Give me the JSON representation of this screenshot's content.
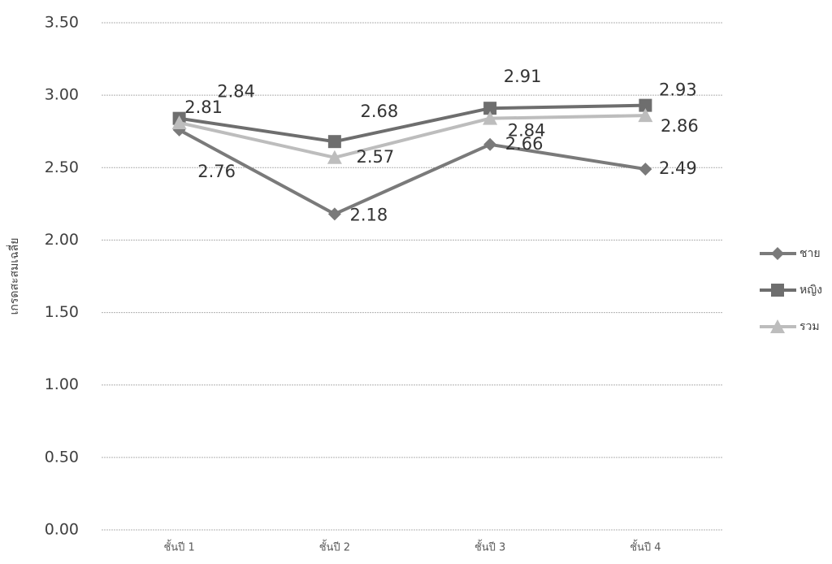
{
  "chart_data": {
    "type": "line",
    "y_label": "เกรดสะสมเฉลี่ย",
    "categories": [
      "ชั้นปี 1",
      "ชั้นปี 2",
      "ชั้นปี 3",
      "ชั้นปี 4"
    ],
    "series": [
      {
        "name": "ชาย",
        "color": "#7a7a7a",
        "marker": "diamond",
        "values": [
          2.76,
          2.18,
          2.66,
          2.49
        ]
      },
      {
        "name": "หญิง",
        "color": "#6e6e6e",
        "marker": "square",
        "values": [
          2.84,
          2.68,
          2.91,
          2.93
        ]
      },
      {
        "name": "รวม",
        "color": "#bdbdbd",
        "marker": "triangle",
        "values": [
          2.81,
          2.57,
          2.84,
          2.86
        ]
      }
    ],
    "ylim": [
      0,
      3.5
    ],
    "yticks": [
      {
        "value": 0,
        "label": "0.00"
      },
      {
        "value": 0.5,
        "label": "0.50"
      },
      {
        "value": 1,
        "label": "1.00"
      },
      {
        "value": 1.5,
        "label": "1.50"
      },
      {
        "value": 2,
        "label": "2.00"
      },
      {
        "value": 2.5,
        "label": "2.50"
      },
      {
        "value": 3,
        "label": "3.00"
      },
      {
        "value": 3.5,
        "label": "3.50"
      }
    ],
    "grid": true,
    "legend": "right"
  }
}
